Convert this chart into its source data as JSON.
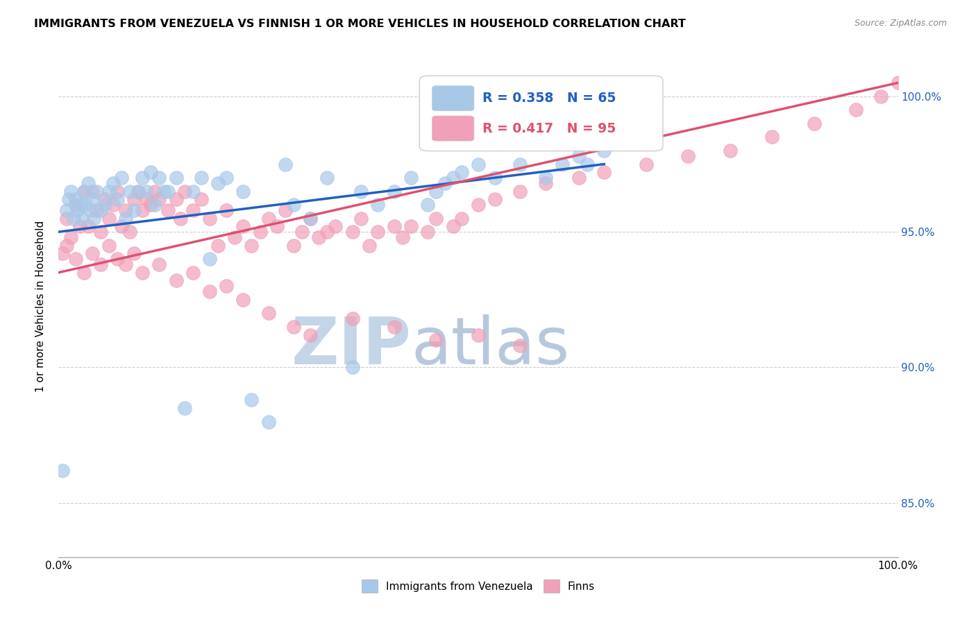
{
  "title": "IMMIGRANTS FROM VENEZUELA VS FINNISH 1 OR MORE VEHICLES IN HOUSEHOLD CORRELATION CHART",
  "source": "Source: ZipAtlas.com",
  "ylabel": "1 or more Vehicles in Household",
  "ytick_labels": [
    "85.0%",
    "90.0%",
    "95.0%",
    "100.0%"
  ],
  "ytick_values": [
    85.0,
    90.0,
    95.0,
    100.0
  ],
  "legend_labels": [
    "Immigrants from Venezuela",
    "Finns"
  ],
  "blue_R": "R = 0.358",
  "blue_N": "N = 65",
  "pink_R": "R = 0.417",
  "pink_N": "N = 95",
  "blue_color": "#A8C8E8",
  "pink_color": "#F0A0B8",
  "blue_line_color": "#2060C0",
  "pink_line_color": "#E05070",
  "background_color": "#FFFFFF",
  "xlim": [
    0,
    100
  ],
  "ylim": [
    83.0,
    101.5
  ],
  "blue_trendline": [
    0.0,
    95.0,
    65.0,
    97.5
  ],
  "pink_trendline": [
    0.0,
    93.5,
    100.0,
    100.5
  ],
  "blue_scatter_x": [
    0.5,
    1.0,
    1.2,
    1.5,
    1.8,
    2.0,
    2.2,
    2.5,
    2.8,
    3.0,
    3.2,
    3.5,
    3.8,
    4.0,
    4.2,
    4.5,
    5.0,
    5.5,
    6.0,
    6.5,
    7.0,
    7.5,
    8.0,
    8.5,
    9.0,
    9.5,
    10.0,
    10.5,
    11.0,
    11.5,
    12.0,
    12.5,
    13.0,
    14.0,
    15.0,
    16.0,
    17.0,
    18.0,
    19.0,
    20.0,
    22.0,
    23.0,
    25.0,
    27.0,
    28.0,
    30.0,
    32.0,
    35.0,
    36.0,
    38.0,
    40.0,
    42.0,
    44.0,
    45.0,
    46.0,
    47.0,
    48.0,
    50.0,
    52.0,
    55.0,
    58.0,
    60.0,
    62.0,
    63.0,
    65.0
  ],
  "blue_scatter_y": [
    86.2,
    95.8,
    96.2,
    96.5,
    95.5,
    96.2,
    95.8,
    96.0,
    95.5,
    96.5,
    96.0,
    96.8,
    95.8,
    96.2,
    95.5,
    96.5,
    95.8,
    96.0,
    96.5,
    96.8,
    96.2,
    97.0,
    95.5,
    96.5,
    95.8,
    96.5,
    97.0,
    96.5,
    97.2,
    96.0,
    97.0,
    96.5,
    96.5,
    97.0,
    88.5,
    96.5,
    97.0,
    94.0,
    96.8,
    97.0,
    96.5,
    88.8,
    88.0,
    97.5,
    96.0,
    95.5,
    97.0,
    90.0,
    96.5,
    96.0,
    96.5,
    97.0,
    96.0,
    96.5,
    96.8,
    97.0,
    97.2,
    97.5,
    97.0,
    97.5,
    97.0,
    97.5,
    97.8,
    97.5,
    98.0
  ],
  "pink_scatter_x": [
    1.0,
    1.5,
    2.0,
    2.5,
    3.0,
    3.5,
    4.0,
    4.5,
    5.0,
    5.5,
    6.0,
    6.5,
    7.0,
    7.5,
    8.0,
    8.5,
    9.0,
    9.5,
    10.0,
    10.5,
    11.0,
    11.5,
    12.0,
    13.0,
    14.0,
    14.5,
    15.0,
    16.0,
    17.0,
    18.0,
    19.0,
    20.0,
    21.0,
    22.0,
    23.0,
    24.0,
    25.0,
    26.0,
    27.0,
    28.0,
    29.0,
    30.0,
    31.0,
    32.0,
    33.0,
    35.0,
    36.0,
    37.0,
    38.0,
    40.0,
    41.0,
    42.0,
    44.0,
    45.0,
    47.0,
    48.0,
    50.0,
    52.0,
    55.0,
    58.0,
    62.0,
    65.0,
    70.0,
    75.0,
    80.0,
    85.0,
    90.0,
    95.0,
    98.0,
    100.0,
    0.5,
    1.0,
    2.0,
    3.0,
    4.0,
    5.0,
    6.0,
    7.0,
    8.0,
    9.0,
    10.0,
    12.0,
    14.0,
    16.0,
    18.0,
    20.0,
    22.0,
    25.0,
    28.0,
    30.0,
    35.0,
    40.0,
    45.0,
    50.0,
    55.0
  ],
  "pink_scatter_y": [
    95.5,
    94.8,
    96.0,
    95.2,
    96.5,
    95.2,
    96.5,
    95.8,
    95.0,
    96.2,
    95.5,
    96.0,
    96.5,
    95.2,
    95.8,
    95.0,
    96.2,
    96.5,
    95.8,
    96.2,
    96.0,
    96.5,
    96.2,
    95.8,
    96.2,
    95.5,
    96.5,
    95.8,
    96.2,
    95.5,
    94.5,
    95.8,
    94.8,
    95.2,
    94.5,
    95.0,
    95.5,
    95.2,
    95.8,
    94.5,
    95.0,
    95.5,
    94.8,
    95.0,
    95.2,
    95.0,
    95.5,
    94.5,
    95.0,
    95.2,
    94.8,
    95.2,
    95.0,
    95.5,
    95.2,
    95.5,
    96.0,
    96.2,
    96.5,
    96.8,
    97.0,
    97.2,
    97.5,
    97.8,
    98.0,
    98.5,
    99.0,
    99.5,
    100.0,
    100.5,
    94.2,
    94.5,
    94.0,
    93.5,
    94.2,
    93.8,
    94.5,
    94.0,
    93.8,
    94.2,
    93.5,
    93.8,
    93.2,
    93.5,
    92.8,
    93.0,
    92.5,
    92.0,
    91.5,
    91.2,
    91.8,
    91.5,
    91.0,
    91.2,
    90.8
  ]
}
